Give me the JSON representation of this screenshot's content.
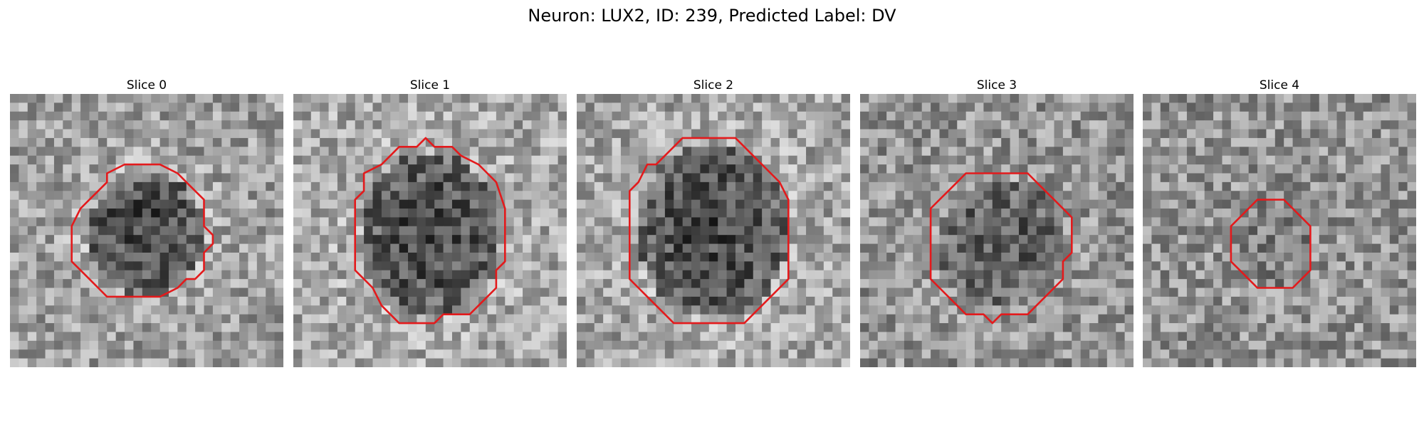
{
  "figure": {
    "title": "Neuron: LUX2, ID: 239, Predicted Label: DV",
    "contour_color": "#e31a1c",
    "colormap": "gray"
  },
  "panels": [
    {
      "title": "Slice 0",
      "seed": 11,
      "mean_bg": 0.62,
      "dark": 0.35,
      "ring_light": 0.12
    },
    {
      "title": "Slice 1",
      "seed": 23,
      "mean_bg": 0.66,
      "dark": 0.38,
      "ring_light": 0.06
    },
    {
      "title": "Slice 2",
      "seed": 37,
      "mean_bg": 0.64,
      "dark": 0.36,
      "ring_light": 0.1
    },
    {
      "title": "Slice 3",
      "seed": 51,
      "mean_bg": 0.58,
      "dark": 0.22,
      "ring_light": 0.06
    },
    {
      "title": "Slice 4",
      "seed": 67,
      "mean_bg": 0.58,
      "dark": 0.1,
      "ring_light": 0.02
    }
  ]
}
